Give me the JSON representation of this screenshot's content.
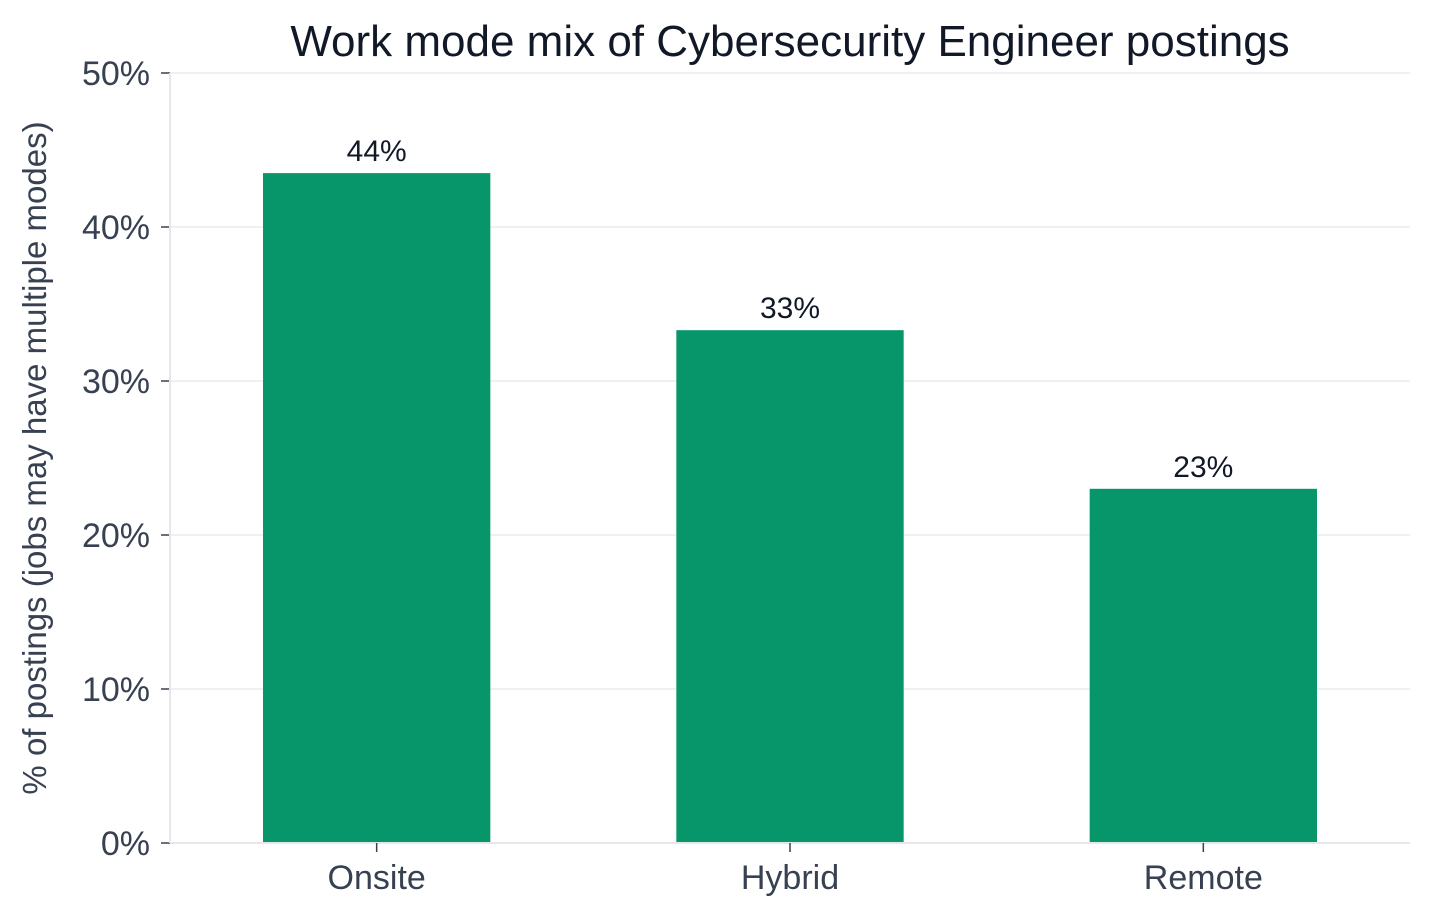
{
  "chart_data": {
    "type": "bar",
    "title": "Work mode mix of Cybersecurity Engineer postings",
    "xlabel": "",
    "ylabel": "% of postings (jobs may have multiple modes)",
    "categories": [
      "Onsite",
      "Hybrid",
      "Remote"
    ],
    "values": [
      43.5,
      33.3,
      23.0
    ],
    "data_labels": [
      "44%",
      "33%",
      "23%"
    ],
    "ylim": [
      0,
      50
    ],
    "yticks": [
      0,
      10,
      20,
      30,
      40,
      50
    ],
    "ytick_labels": [
      "0%",
      "10%",
      "20%",
      "30%",
      "40%",
      "50%"
    ],
    "grid": true,
    "grid_axis": "y",
    "legend": "none",
    "bar_color": "#079669",
    "grid_color": "#EEF0F2",
    "axis_color": "#E5E7EB",
    "text_color": "#374151",
    "title_color": "#111827"
  }
}
